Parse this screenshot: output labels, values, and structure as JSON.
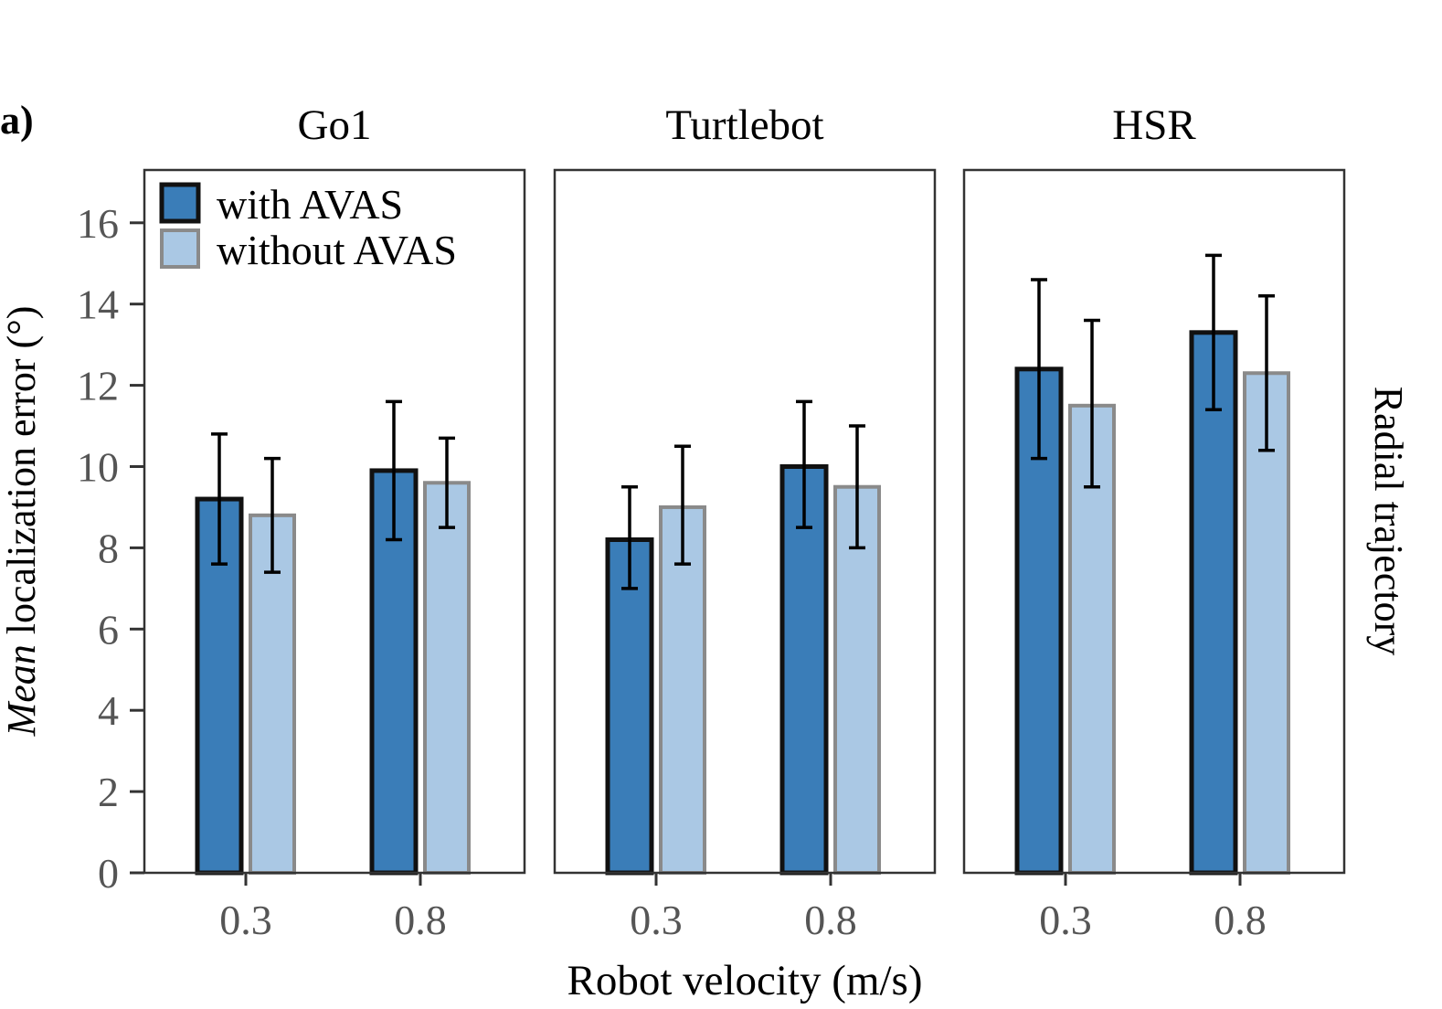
{
  "panel_label": "a)",
  "side_label": "Radial trajectory",
  "colors": {
    "with": "#3a7db8",
    "without": "#aac8e4",
    "with_edge": "#111111",
    "without_edge": "#8a8a8a",
    "axis": "#333333",
    "tick_text": "#555555"
  },
  "chart_data": {
    "type": "bar",
    "title": "",
    "xlabel": "Robot velocity (m/s)",
    "ylabel_italic": "Mean",
    "ylabel_rest": " localization error (°)",
    "ylim": [
      0,
      17.3
    ],
    "yticks": [
      0,
      2,
      4,
      6,
      8,
      10,
      12,
      14,
      16
    ],
    "categories": [
      "0.3",
      "0.8"
    ],
    "legend": [
      "with AVAS",
      "without AVAS"
    ],
    "legend_position": "top-left",
    "panels": [
      {
        "title": "Go1",
        "series": [
          {
            "name": "with AVAS",
            "values": [
              9.2,
              9.9
            ],
            "err_low": [
              7.6,
              8.2
            ],
            "err_high": [
              10.8,
              11.6
            ]
          },
          {
            "name": "without AVAS",
            "values": [
              8.8,
              9.6
            ],
            "err_low": [
              7.4,
              8.5
            ],
            "err_high": [
              10.2,
              10.7
            ]
          }
        ]
      },
      {
        "title": "Turtlebot",
        "series": [
          {
            "name": "with AVAS",
            "values": [
              8.2,
              10.0
            ],
            "err_low": [
              7.0,
              8.5
            ],
            "err_high": [
              9.5,
              11.6
            ]
          },
          {
            "name": "without AVAS",
            "values": [
              9.0,
              9.5
            ],
            "err_low": [
              7.6,
              8.0
            ],
            "err_high": [
              10.5,
              11.0
            ]
          }
        ]
      },
      {
        "title": "HSR",
        "series": [
          {
            "name": "with AVAS",
            "values": [
              12.4,
              13.3
            ],
            "err_low": [
              10.2,
              11.4
            ],
            "err_high": [
              14.6,
              15.2
            ]
          },
          {
            "name": "without AVAS",
            "values": [
              11.5,
              12.3
            ],
            "err_low": [
              9.5,
              10.4
            ],
            "err_high": [
              13.6,
              14.2
            ]
          }
        ]
      }
    ]
  }
}
